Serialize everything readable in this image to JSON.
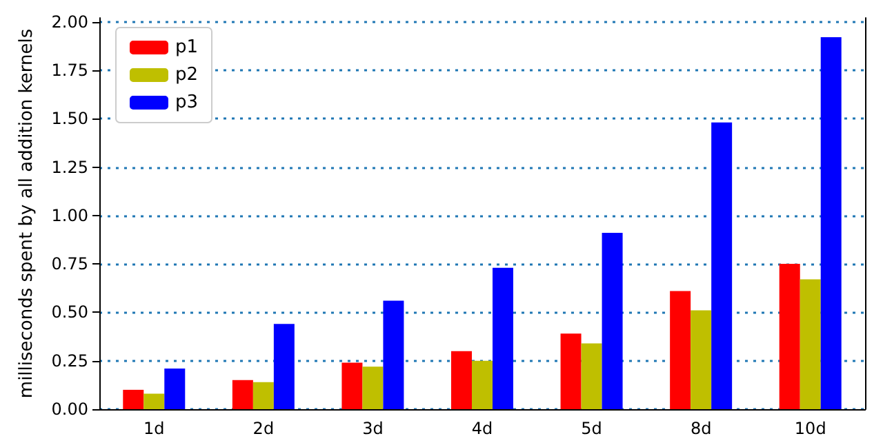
{
  "chart_data": {
    "type": "bar",
    "ylabel": "milliseconds spent by all addition kernels",
    "categories": [
      "1d",
      "2d",
      "3d",
      "4d",
      "5d",
      "8d",
      "10d"
    ],
    "series": [
      {
        "name": "p1",
        "color": "#ff0000",
        "values": [
          0.1,
          0.15,
          0.24,
          0.3,
          0.39,
          0.61,
          0.75
        ]
      },
      {
        "name": "p2",
        "color": "#bfbf00",
        "values": [
          0.08,
          0.14,
          0.22,
          0.25,
          0.34,
          0.51,
          0.67
        ]
      },
      {
        "name": "p3",
        "color": "#0000ff",
        "values": [
          0.21,
          0.44,
          0.56,
          0.73,
          0.91,
          1.48,
          1.92
        ]
      }
    ],
    "ylim": [
      0,
      2.02
    ],
    "yticks": [
      {
        "value": 0,
        "label": "0.00"
      },
      {
        "value": 0.25,
        "label": "0.25"
      },
      {
        "value": 0.5,
        "label": "0.50"
      },
      {
        "value": 0.75,
        "label": "0.75"
      },
      {
        "value": 1,
        "label": "1.00"
      },
      {
        "value": 1.25,
        "label": "1.25"
      },
      {
        "value": 1.5,
        "label": "1.50"
      },
      {
        "value": 1.75,
        "label": "1.75"
      },
      {
        "value": 2,
        "label": "2.00"
      }
    ],
    "grid": "y",
    "legend": "top left"
  }
}
